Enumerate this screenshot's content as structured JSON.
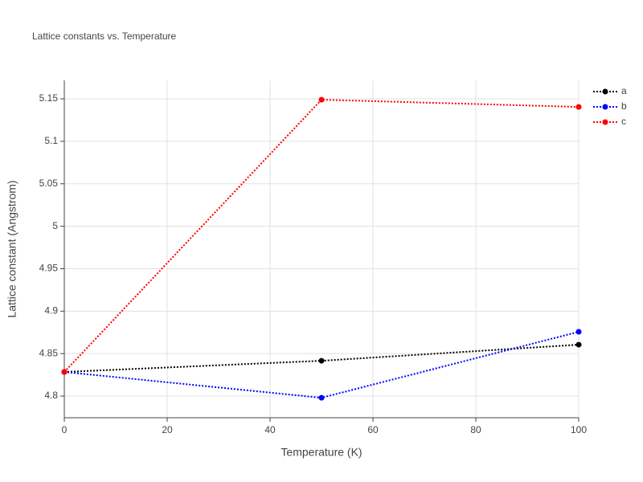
{
  "chart_data": {
    "type": "line",
    "title": "Lattice constants vs. Temperature",
    "x_label": "Temperature (K)",
    "y_label": "Lattice constant (Angstrom)",
    "x": [
      0,
      50,
      100
    ],
    "series": [
      {
        "name": "a",
        "color": "#000000",
        "values": [
          4.8284,
          4.8416,
          4.8605
        ]
      },
      {
        "name": "b",
        "color": "#0000ff",
        "values": [
          4.8284,
          4.798,
          4.8757
        ]
      },
      {
        "name": "c",
        "color": "#ff0000",
        "values": [
          4.8284,
          5.149,
          5.1405
        ]
      }
    ],
    "xlim": [
      0,
      100
    ],
    "xticks": [
      0,
      20,
      40,
      60,
      80,
      100
    ],
    "ylim": [
      4.7745,
      5.1718
    ],
    "yticks": [
      4.8,
      4.85,
      4.9,
      4.95,
      5,
      5.05,
      5.1,
      5.15
    ],
    "grid": true,
    "legend": "top-right"
  }
}
